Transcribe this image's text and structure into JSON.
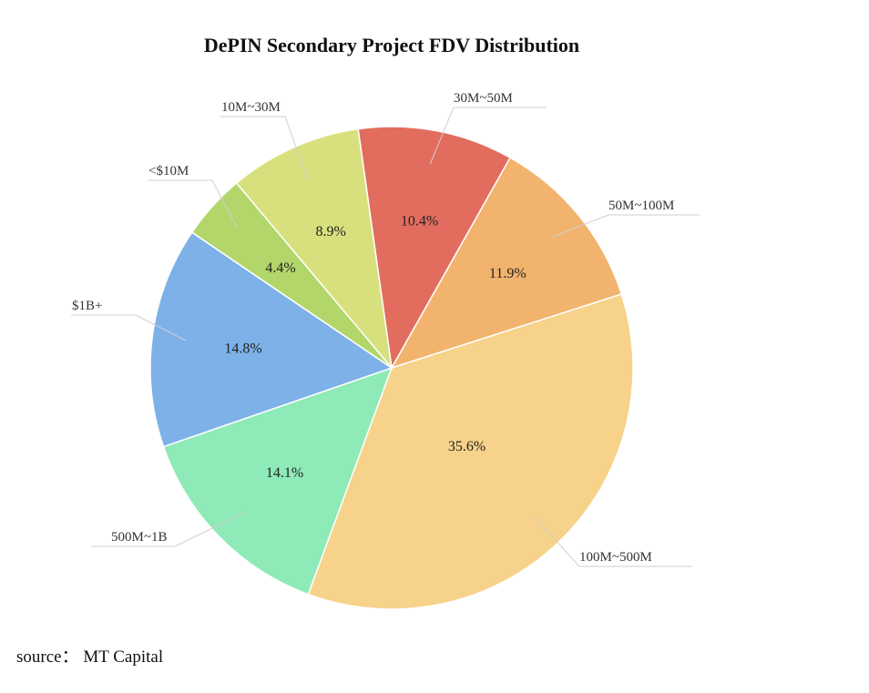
{
  "chart_data": {
    "type": "pie",
    "title": "DePIN Secondary Project FDV Distribution",
    "slices": [
      {
        "label": "30M~50M",
        "value": 10.4,
        "value_label": "10.4%",
        "color": "#e26d5e"
      },
      {
        "label": "50M~100M",
        "value": 11.9,
        "value_label": "11.9%",
        "color": "#f2b36e"
      },
      {
        "label": "100M~500M",
        "value": 35.6,
        "value_label": "35.6%",
        "color": "#f7d28a"
      },
      {
        "label": "500M~1B",
        "value": 14.1,
        "value_label": "14.1%",
        "color": "#8eeab7"
      },
      {
        "label": "$1B+",
        "value": 14.8,
        "value_label": "14.8%",
        "color": "#7db1e8"
      },
      {
        "label": "<$10M",
        "value": 4.4,
        "value_label": "4.4%",
        "color": "#b3d66b"
      },
      {
        "label": "10M~30M",
        "value": 8.9,
        "value_label": "8.9%",
        "color": "#d8e07d"
      }
    ]
  },
  "source": "source： MT Capital"
}
